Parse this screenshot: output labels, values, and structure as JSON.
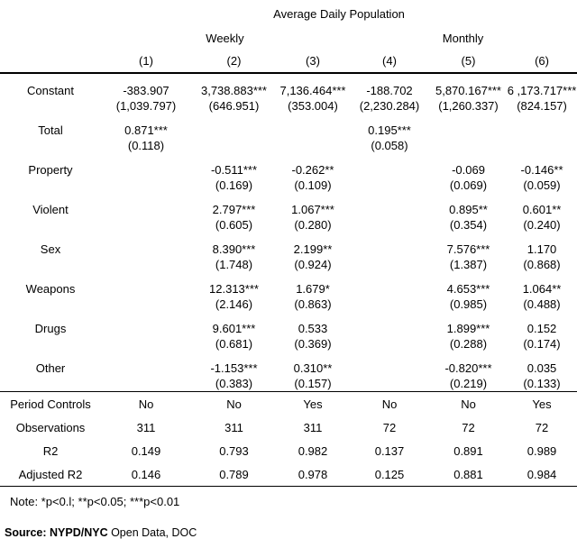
{
  "title": "Average Daily Population",
  "groups": [
    {
      "label": "Weekly"
    },
    {
      "label": "Monthly"
    }
  ],
  "column_numbers": [
    "(1)",
    "(2)",
    "(3)",
    "(4)",
    "(5)",
    "(6)"
  ],
  "coefficient_rows": [
    {
      "label": "Constant",
      "estimates": [
        "-383.907",
        "3,738.883***",
        "7,136.464***",
        "-188.702",
        "5,870.167***",
        "6 ,173.717***"
      ],
      "std_errors": [
        "(1,039.797)",
        "(646.951)",
        "(353.004)",
        "(2,230.284)",
        "(1,260.337)",
        "(824.157)"
      ]
    },
    {
      "label": "Total",
      "estimates": [
        "0.871***",
        "",
        "",
        "0.195***",
        "",
        ""
      ],
      "std_errors": [
        "(0.118)",
        "",
        "",
        "(0.058)",
        "",
        ""
      ]
    },
    {
      "label": "Property",
      "estimates": [
        "",
        "-0.511***",
        "-0.262**",
        "",
        "-0.069",
        "-0.146**"
      ],
      "std_errors": [
        "",
        "(0.169)",
        "(0.109)",
        "",
        "(0.069)",
        "(0.059)"
      ]
    },
    {
      "label": "Violent",
      "estimates": [
        "",
        "2.797***",
        "1.067***",
        "",
        "0.895**",
        "0.601**"
      ],
      "std_errors": [
        "",
        "(0.605)",
        "(0.280)",
        "",
        "(0.354)",
        "(0.240)"
      ]
    },
    {
      "label": "Sex",
      "estimates": [
        "",
        "8.390***",
        "2.199**",
        "",
        "7.576***",
        "1.170"
      ],
      "std_errors": [
        "",
        "(1.748)",
        "(0.924)",
        "",
        "(1.387)",
        "(0.868)"
      ]
    },
    {
      "label": "Weapons",
      "estimates": [
        "",
        "12.313***",
        "1.679*",
        "",
        "4.653***",
        "1.064**"
      ],
      "std_errors": [
        "",
        "(2.146)",
        "(0.863)",
        "",
        "(0.985)",
        "(0.488)"
      ]
    },
    {
      "label": "Drugs",
      "estimates": [
        "",
        "9.601***",
        "0.533",
        "",
        "1.899***",
        "0.152"
      ],
      "std_errors": [
        "",
        "(0.681)",
        "(0.369)",
        "",
        "(0.288)",
        "(0.174)"
      ]
    },
    {
      "label": "Other",
      "estimates": [
        "",
        "-1.153***",
        "0.310**",
        "",
        "-0.820***",
        "0.035"
      ],
      "std_errors": [
        "",
        "(0.383)",
        "(0.157)",
        "",
        "(0.219)",
        "(0.133)"
      ]
    }
  ],
  "summary_rows": [
    {
      "label": "Period Controls",
      "values": [
        "No",
        "No",
        "Yes",
        "No",
        "No",
        "Yes"
      ]
    },
    {
      "label": "Observations",
      "values": [
        "311",
        "311",
        "311",
        "72",
        "72",
        "72"
      ]
    },
    {
      "label": "R2",
      "values": [
        "0.149",
        "0.793",
        "0.982",
        "0.137",
        "0.891",
        "0.989"
      ]
    },
    {
      "label": "Adjusted R2",
      "values": [
        "0.146",
        "0.789",
        "0.978",
        "0.125",
        "0.881",
        "0.984"
      ]
    }
  ],
  "note": "Note: *p<0.l; **p<0.05; ***p<0.01",
  "source_bold": "Source: NYPD/NYC",
  "source_rest": " Open Data, DOC"
}
